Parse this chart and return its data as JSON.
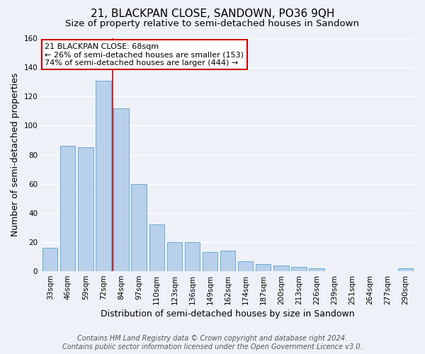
{
  "title": "21, BLACKPAN CLOSE, SANDOWN, PO36 9QH",
  "subtitle": "Size of property relative to semi-detached houses in Sandown",
  "xlabel": "Distribution of semi-detached houses by size in Sandown",
  "ylabel": "Number of semi-detached properties",
  "categories": [
    "33sqm",
    "46sqm",
    "59sqm",
    "72sqm",
    "84sqm",
    "97sqm",
    "110sqm",
    "123sqm",
    "136sqm",
    "149sqm",
    "162sqm",
    "174sqm",
    "187sqm",
    "200sqm",
    "213sqm",
    "226sqm",
    "239sqm",
    "251sqm",
    "264sqm",
    "277sqm",
    "290sqm"
  ],
  "values": [
    16,
    86,
    85,
    131,
    112,
    60,
    32,
    20,
    20,
    13,
    14,
    7,
    5,
    4,
    3,
    2,
    0,
    0,
    0,
    0,
    2
  ],
  "bar_color": "#b8d0ea",
  "bar_edge_color": "#6aaad4",
  "annotation_title": "21 BLACKPAN CLOSE: 68sqm",
  "annotation_line1": "← 26% of semi-detached houses are smaller (153)",
  "annotation_line2": "74% of semi-detached houses are larger (444) →",
  "vline_x": 3.5,
  "vline_color": "#cc0000",
  "annotation_box_facecolor": "#ffffff",
  "annotation_box_edgecolor": "#cc0000",
  "ylim": [
    0,
    160
  ],
  "yticks": [
    0,
    20,
    40,
    60,
    80,
    100,
    120,
    140,
    160
  ],
  "footer1": "Contains HM Land Registry data © Crown copyright and database right 2024.",
  "footer2": "Contains public sector information licensed under the Open Government Licence v3.0.",
  "bg_color": "#eef2f8",
  "grid_color": "#ffffff",
  "title_fontsize": 11,
  "subtitle_fontsize": 9.5,
  "axis_label_fontsize": 9,
  "tick_fontsize": 7.5,
  "footer_fontsize": 7
}
